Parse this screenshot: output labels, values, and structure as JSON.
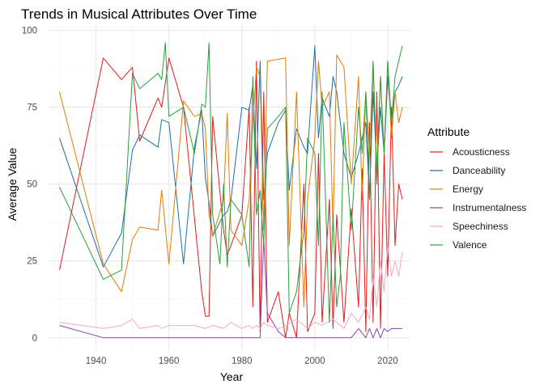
{
  "chart_data": {
    "type": "line",
    "title": "Trends in Musical Attributes Over Time",
    "xlabel": "Year",
    "ylabel": "Average Value",
    "xlim": [
      1927,
      2026
    ],
    "ylim": [
      -4,
      102
    ],
    "x_ticks": [
      1940,
      1960,
      1980,
      2000,
      2020
    ],
    "y_ticks": [
      0,
      25,
      50,
      75,
      100
    ],
    "grid": true,
    "legend": {
      "title": "Attribute",
      "placement": "right"
    },
    "series": [
      {
        "name": "Acousticness",
        "color": "#e41a1c",
        "x": [
          1930,
          1942,
          1947,
          1950,
          1952,
          1957,
          1958,
          1960,
          1964,
          1969,
          1970,
          1971,
          1972,
          1975,
          1976,
          1977,
          1980,
          1982,
          1983,
          1984,
          1985,
          1986,
          1987,
          1990,
          1992,
          1993,
          1995,
          1997,
          1998,
          2000,
          2001,
          2002,
          2004,
          2005,
          2006,
          2008,
          2010,
          2012,
          2013,
          2014,
          2015,
          2016,
          2017,
          2018,
          2019,
          2020,
          2021,
          2022,
          2023,
          2024
        ],
        "y": [
          22,
          91,
          84,
          88,
          64,
          78,
          75,
          91,
          75,
          15,
          7,
          7,
          72,
          35,
          27,
          30,
          40,
          75,
          10,
          90,
          2,
          80,
          5,
          15,
          0,
          8,
          0,
          50,
          2,
          8,
          60,
          5,
          45,
          3,
          40,
          5,
          42,
          10,
          55,
          2,
          70,
          5,
          80,
          3,
          60,
          20,
          75,
          30,
          50,
          45
        ]
      },
      {
        "name": "Danceability",
        "color": "#1f6fa8",
        "x": [
          1930,
          1942,
          1947,
          1950,
          1952,
          1957,
          1958,
          1960,
          1964,
          1967,
          1969,
          1970,
          1971,
          1972,
          1975,
          1976,
          1977,
          1980,
          1982,
          1983,
          1984,
          1985,
          1986,
          1987,
          1990,
          1992,
          1993,
          1995,
          1997,
          1998,
          2000,
          2001,
          2002,
          2004,
          2005,
          2006,
          2008,
          2010,
          2012,
          2013,
          2014,
          2015,
          2016,
          2017,
          2018,
          2019,
          2020,
          2021,
          2022,
          2023,
          2024
        ],
        "y": [
          65,
          23,
          34,
          61,
          66,
          62,
          71,
          70,
          24,
          62,
          74,
          52,
          44,
          33,
          40,
          41,
          45,
          75,
          74,
          82,
          55,
          90,
          45,
          60,
          70,
          74,
          48,
          68,
          62,
          60,
          95,
          65,
          78,
          72,
          85,
          80,
          60,
          52,
          60,
          65,
          70,
          45,
          80,
          55,
          75,
          60,
          85,
          70,
          80,
          82,
          85
        ]
      },
      {
        "name": "Energy",
        "color": "#e17c05",
        "x": [
          1930,
          1942,
          1947,
          1950,
          1952,
          1957,
          1958,
          1960,
          1964,
          1967,
          1969,
          1970,
          1971,
          1972,
          1975,
          1976,
          1977,
          1980,
          1982,
          1983,
          1984,
          1985,
          1986,
          1987,
          1992,
          1993,
          1995,
          1997,
          1998,
          2000,
          2001,
          2002,
          2004,
          2005,
          2006,
          2008,
          2010,
          2012,
          2013,
          2014,
          2015,
          2016,
          2017,
          2018,
          2019,
          2020,
          2021,
          2022,
          2023,
          2024
        ],
        "y": [
          80,
          24,
          15,
          32,
          36,
          35,
          48,
          24,
          77,
          72,
          73,
          68,
          40,
          33,
          45,
          73,
          35,
          30,
          45,
          70,
          88,
          85,
          35,
          90,
          91,
          30,
          80,
          10,
          45,
          65,
          90,
          75,
          80,
          35,
          92,
          88,
          50,
          85,
          45,
          80,
          60,
          90,
          55,
          85,
          60,
          90,
          65,
          80,
          70,
          75
        ]
      },
      {
        "name": "Instrumentalness",
        "color": "#8e44ad",
        "x": [
          1930,
          1942,
          1947,
          1950,
          1952,
          1957,
          1958,
          1960,
          1964,
          1967,
          1970,
          1972,
          1975,
          1976,
          1977,
          1980,
          1982,
          1983,
          1984,
          1985,
          1986,
          1987,
          1990,
          1992,
          1995,
          1998,
          2000,
          2002,
          2005,
          2008,
          2010,
          2012,
          2014,
          2015,
          2016,
          2017,
          2018,
          2019,
          2020,
          2021,
          2022,
          2023,
          2024
        ],
        "y": [
          4,
          0,
          0,
          0,
          0,
          0,
          0,
          0,
          0,
          0,
          0,
          0,
          0,
          0,
          0,
          0,
          0,
          0,
          0,
          0,
          32,
          8,
          2,
          0,
          0,
          0,
          0,
          0,
          0,
          0,
          0,
          3,
          0,
          3,
          0,
          3,
          0,
          3,
          2,
          3,
          3,
          3,
          3
        ]
      },
      {
        "name": "Speechiness",
        "color": "#f7a8c2",
        "x": [
          1930,
          1942,
          1947,
          1950,
          1952,
          1957,
          1958,
          1960,
          1964,
          1967,
          1970,
          1972,
          1975,
          1976,
          1977,
          1980,
          1982,
          1983,
          1984,
          1985,
          1986,
          1987,
          1990,
          1992,
          1995,
          1998,
          2000,
          2002,
          2005,
          2008,
          2010,
          2012,
          2014,
          2015,
          2016,
          2017,
          2018,
          2019,
          2020,
          2021,
          2022,
          2023,
          2024
        ],
        "y": [
          5,
          3,
          4,
          6,
          3,
          4,
          3,
          4,
          4,
          4,
          3,
          4,
          3,
          4,
          5,
          3,
          4,
          3,
          4,
          3,
          5,
          4,
          3,
          4,
          6,
          3,
          5,
          4,
          6,
          3,
          8,
          5,
          10,
          6,
          20,
          10,
          25,
          15,
          30,
          20,
          25,
          20,
          28
        ]
      },
      {
        "name": "Valence",
        "color": "#2e9e3e",
        "x": [
          1930,
          1942,
          1947,
          1950,
          1952,
          1957,
          1958,
          1959,
          1960,
          1964,
          1967,
          1969,
          1970,
          1971,
          1972,
          1974,
          1975,
          1976,
          1977,
          1980,
          1982,
          1983,
          1984,
          1985,
          1986,
          1987,
          1990,
          1992,
          1993,
          1995,
          1997,
          1998,
          2000,
          2001,
          2002,
          2004,
          2005,
          2006,
          2007,
          2008,
          2010,
          2012,
          2013,
          2014,
          2015,
          2016,
          2017,
          2018,
          2019,
          2020,
          2021,
          2022,
          2023,
          2024
        ],
        "y": [
          49,
          19,
          22,
          86,
          81,
          86,
          84,
          96,
          72,
          75,
          60,
          76,
          75,
          96,
          40,
          24,
          50,
          23,
          45,
          40,
          23,
          85,
          40,
          48,
          30,
          68,
          72,
          75,
          8,
          15,
          35,
          65,
          60,
          30,
          80,
          5,
          40,
          10,
          20,
          70,
          35,
          75,
          60,
          80,
          45,
          90,
          50,
          85,
          60,
          90,
          70,
          85,
          90,
          95
        ]
      }
    ]
  }
}
